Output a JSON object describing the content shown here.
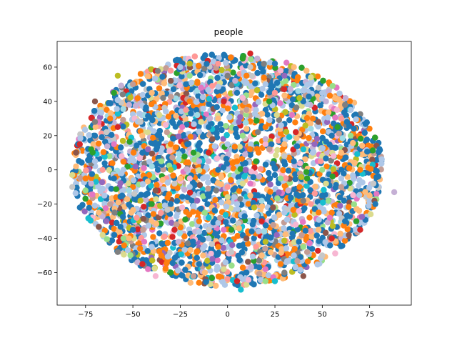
{
  "chart_data": {
    "type": "scatter",
    "title": "people",
    "xlabel": "",
    "ylabel": "",
    "xlim": [
      -90,
      97
    ],
    "ylim": [
      -79,
      75
    ],
    "xticks": [
      -75,
      -50,
      -25,
      0,
      25,
      50,
      75
    ],
    "yticks": [
      -60,
      -40,
      -20,
      0,
      20,
      40,
      60
    ],
    "grid": false,
    "legend": "none",
    "palette": [
      "#1f77b4",
      "#aec7e8",
      "#ff7f0e",
      "#ffbb78",
      "#2ca02c",
      "#98df8a",
      "#d62728",
      "#ff9896",
      "#9467bd",
      "#c5b0d5",
      "#8c564b",
      "#c49c94",
      "#e377c2",
      "#f7b6d2",
      "#7f7f7f",
      "#c7c7c7",
      "#bcbd22",
      "#dbdb8d",
      "#17becf",
      "#9edae5"
    ],
    "series": [
      {
        "color": "#1f77b4",
        "points": [
          [
            -60,
            -5
          ],
          [
            -45,
            10
          ],
          [
            -30,
            -20
          ],
          [
            -10,
            25
          ],
          [
            5,
            45
          ],
          [
            20,
            -40
          ],
          [
            35,
            5
          ],
          [
            50,
            -15
          ],
          [
            62,
            -30
          ],
          [
            -70,
            20
          ],
          [
            -15,
            -55
          ],
          [
            40,
            40
          ],
          [
            -50,
            -35
          ],
          [
            -5,
            0
          ],
          [
            25,
            62
          ],
          [
            78,
            -20
          ],
          [
            -22,
            50
          ],
          [
            10,
            -60
          ],
          [
            55,
            20
          ],
          [
            -78,
            -22
          ]
        ]
      },
      {
        "color": "#aec7e8",
        "points": [
          [
            -55,
            0
          ],
          [
            -35,
            30
          ],
          [
            -20,
            -10
          ],
          [
            0,
            15
          ],
          [
            15,
            35
          ],
          [
            30,
            -25
          ],
          [
            45,
            10
          ],
          [
            60,
            -5
          ],
          [
            -65,
            -15
          ],
          [
            -40,
            -45
          ],
          [
            20,
            50
          ],
          [
            -10,
            -40
          ],
          [
            35,
            -50
          ],
          [
            65,
            35
          ],
          [
            -70,
            5
          ],
          [
            5,
            -20
          ],
          [
            -25,
            60
          ],
          [
            50,
            45
          ]
        ]
      },
      {
        "color": "#ff7f0e",
        "points": [
          [
            -50,
            -10
          ],
          [
            -30,
            15
          ],
          [
            -15,
            -30
          ],
          [
            5,
            5
          ],
          [
            20,
            25
          ],
          [
            38,
            -10
          ],
          [
            55,
            -25
          ],
          [
            -62,
            30
          ],
          [
            -35,
            -50
          ],
          [
            10,
            55
          ],
          [
            45,
            30
          ],
          [
            -5,
            -45
          ],
          [
            70,
            0
          ],
          [
            -75,
            -5
          ],
          [
            28,
            -55
          ],
          [
            -20,
            40
          ]
        ]
      },
      {
        "color": "#ffbb78",
        "points": [
          [
            -45,
            20
          ],
          [
            -25,
            -5
          ],
          [
            -5,
            30
          ],
          [
            12,
            -15
          ],
          [
            30,
            15
          ],
          [
            48,
            -35
          ],
          [
            -68,
            -25
          ],
          [
            -40,
            45
          ],
          [
            18,
            -50
          ],
          [
            60,
            10
          ],
          [
            -80,
            2
          ],
          [
            35,
            60
          ],
          [
            -12,
            -60
          ],
          [
            75,
            -15
          ]
        ]
      },
      {
        "color": "#2ca02c",
        "points": [
          [
            -40,
            -20
          ],
          [
            -18,
            10
          ],
          [
            2,
            -35
          ],
          [
            22,
            40
          ],
          [
            42,
            -5
          ],
          [
            58,
            25
          ],
          [
            -60,
            45
          ],
          [
            -30,
            -60
          ],
          [
            15,
            5
          ],
          [
            68,
            -30
          ],
          [
            -72,
            12
          ],
          [
            8,
            65
          ]
        ]
      },
      {
        "color": "#98df8a",
        "points": [
          [
            -35,
            5
          ],
          [
            -12,
            -25
          ],
          [
            8,
            20
          ],
          [
            28,
            -5
          ],
          [
            50,
            0
          ],
          [
            -55,
            -40
          ],
          [
            -20,
            55
          ],
          [
            40,
            -45
          ],
          [
            65,
            20
          ],
          [
            -75,
            -12
          ],
          [
            20,
            -65
          ]
        ]
      },
      {
        "color": "#d62728",
        "points": [
          [
            -58,
            25
          ],
          [
            -28,
            -35
          ],
          [
            -2,
            40
          ],
          [
            18,
            -30
          ],
          [
            36,
            22
          ],
          [
            55,
            -40
          ],
          [
            -78,
            15
          ],
          [
            -45,
            -55
          ],
          [
            5,
            -65
          ],
          [
            70,
            -35
          ],
          [
            12,
            68
          ],
          [
            -10,
            10
          ]
        ]
      },
      {
        "color": "#ff9896",
        "points": [
          [
            -48,
            -28
          ],
          [
            -22,
            35
          ],
          [
            0,
            -10
          ],
          [
            25,
            45
          ],
          [
            44,
            -20
          ],
          [
            -66,
            0
          ],
          [
            -30,
            58
          ],
          [
            15,
            -45
          ],
          [
            60,
            30
          ],
          [
            -5,
            62
          ]
        ]
      },
      {
        "color": "#9467bd",
        "points": [
          [
            -42,
            12
          ],
          [
            -16,
            -18
          ],
          [
            6,
            28
          ],
          [
            26,
            -38
          ],
          [
            46,
            15
          ],
          [
            -64,
            -30
          ],
          [
            30,
            55
          ],
          [
            -8,
            -52
          ]
        ]
      },
      {
        "color": "#c5b0d5",
        "points": [
          [
            -52,
            38
          ],
          [
            -26,
            -42
          ],
          [
            4,
            52
          ],
          [
            32,
            -12
          ],
          [
            52,
            40
          ],
          [
            88,
            -13
          ],
          [
            -72,
            -8
          ],
          [
            20,
            18
          ],
          [
            -15,
            5
          ]
        ]
      },
      {
        "color": "#8c564b",
        "points": [
          [
            -70,
            40
          ],
          [
            -38,
            -12
          ],
          [
            -8,
            18
          ],
          [
            24,
            -22
          ],
          [
            48,
            28
          ],
          [
            64,
            -38
          ],
          [
            -80,
            10
          ],
          [
            10,
            -40
          ],
          [
            -30,
            52
          ],
          [
            40,
            -62
          ]
        ]
      },
      {
        "color": "#c49c94",
        "points": [
          [
            -62,
            -20
          ],
          [
            -32,
            22
          ],
          [
            -4,
            -28
          ],
          [
            22,
            12
          ],
          [
            42,
            -48
          ],
          [
            60,
            -10
          ],
          [
            -50,
            50
          ],
          [
            10,
            35
          ],
          [
            -18,
            -62
          ]
        ]
      },
      {
        "color": "#e377c2",
        "points": [
          [
            -44,
            -42
          ],
          [
            -14,
            48
          ],
          [
            12,
            -8
          ],
          [
            34,
            32
          ],
          [
            54,
            -28
          ],
          [
            -60,
            15
          ],
          [
            -42,
            -58
          ],
          [
            20,
            -58
          ],
          [
            -24,
            25
          ]
        ]
      },
      {
        "color": "#f7b6d2",
        "points": [
          [
            -56,
            8
          ],
          [
            -24,
            -22
          ],
          [
            8,
            42
          ],
          [
            36,
            -32
          ],
          [
            56,
            8
          ],
          [
            -38,
            -62
          ],
          [
            -20,
            -5
          ],
          [
            28,
            58
          ]
        ]
      },
      {
        "color": "#7f7f7f",
        "points": [
          [
            -34,
            42
          ],
          [
            -6,
            -12
          ],
          [
            16,
            22
          ],
          [
            40,
            -18
          ],
          [
            62,
            38
          ],
          [
            -58,
            -48
          ],
          [
            0,
            55
          ],
          [
            30,
            -60
          ],
          [
            -70,
            28
          ]
        ]
      },
      {
        "color": "#c7c7c7",
        "points": [
          [
            -28,
            -8
          ],
          [
            2,
            -48
          ],
          [
            30,
            8
          ],
          [
            50,
            -50
          ],
          [
            -64,
            22
          ],
          [
            -46,
            28
          ],
          [
            12,
            60
          ],
          [
            48,
            48
          ],
          [
            -10,
            -35
          ],
          [
            -82,
            -10
          ]
        ]
      },
      {
        "color": "#bcbd22",
        "points": [
          [
            -58,
            55
          ],
          [
            -30,
            0
          ],
          [
            14,
            -22
          ],
          [
            38,
            42
          ],
          [
            -46,
            -18
          ],
          [
            -20,
            62
          ],
          [
            45,
            55
          ],
          [
            20,
            -42
          ]
        ]
      },
      {
        "color": "#dbdb8d",
        "points": [
          [
            -66,
            -38
          ],
          [
            -36,
            32
          ],
          [
            -2,
            -58
          ],
          [
            26,
            32
          ],
          [
            52,
            -8
          ],
          [
            -82,
            -3
          ],
          [
            44,
            54
          ],
          [
            -14,
            28
          ],
          [
            8,
            -8
          ]
        ]
      },
      {
        "color": "#17becf",
        "points": [
          [
            7,
            -70
          ],
          [
            25,
            -65
          ],
          [
            -10,
            -28
          ],
          [
            40,
            12
          ]
        ]
      },
      {
        "color": "#9edae5",
        "points": [
          [
            -52,
            -12
          ],
          [
            -16,
            32
          ],
          [
            18,
            -18
          ],
          [
            44,
            24
          ],
          [
            -40,
            2
          ]
        ]
      }
    ]
  }
}
